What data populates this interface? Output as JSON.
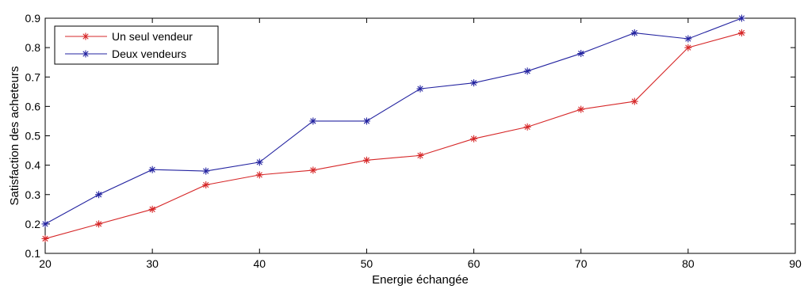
{
  "chart_data": {
    "type": "line",
    "xlabel": "Energie échangée",
    "ylabel": "Satisfaction des acheteurs",
    "xlim": [
      20,
      90
    ],
    "ylim": [
      0.1,
      0.9
    ],
    "xticks": [
      20,
      30,
      40,
      50,
      60,
      70,
      80,
      90
    ],
    "yticks": [
      0.1,
      0.2,
      0.3,
      0.4,
      0.5,
      0.6,
      0.7,
      0.8,
      0.9
    ],
    "grid": false,
    "legend_position": "top-left",
    "series": [
      {
        "name": "Un seul vendeur",
        "color": "#d62728",
        "marker": "asterisk",
        "x": [
          20,
          25,
          30,
          35,
          40,
          45,
          50,
          55,
          60,
          65,
          70,
          75,
          80,
          85
        ],
        "y": [
          0.15,
          0.2,
          0.25,
          0.333,
          0.367,
          0.383,
          0.417,
          0.433,
          0.49,
          0.53,
          0.59,
          0.617,
          0.8,
          0.85
        ]
      },
      {
        "name": "Deux vendeurs",
        "color": "#2323a0",
        "marker": "asterisk",
        "x": [
          20,
          25,
          30,
          35,
          40,
          45,
          50,
          55,
          60,
          65,
          70,
          75,
          80,
          85
        ],
        "y": [
          0.2,
          0.3,
          0.385,
          0.38,
          0.41,
          0.55,
          0.55,
          0.66,
          0.68,
          0.72,
          0.78,
          0.85,
          0.83,
          0.9
        ]
      }
    ]
  }
}
